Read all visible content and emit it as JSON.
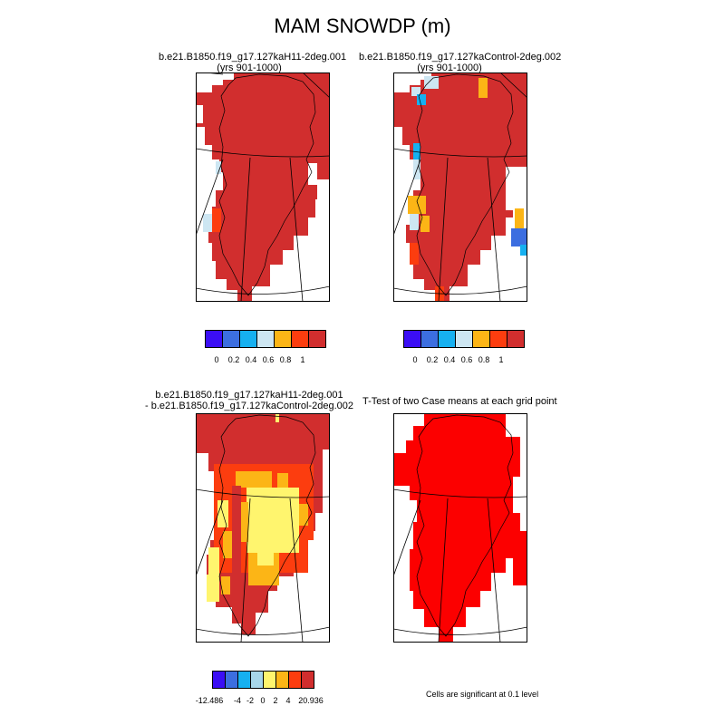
{
  "title": "MAM SNOWDP (m)",
  "panels": {
    "p1": {
      "line1": "b.e21.B1850.f19_g17.127kaH11-2deg.001",
      "line2": "(yrs 901-1000)"
    },
    "p2": {
      "line1": "b.e21.B1850.f19_g17.127kaControl-2deg.002",
      "line2": "(yrs 901-1000)"
    },
    "p3": {
      "line1": "b.e21.B1850.f19_g17.127kaH11-2deg.001",
      "line2": "- b.e21.B1850.f19_g17.127kaControl-2deg.002"
    },
    "p4": {
      "line1": "T-Test of two Case means at each grid point",
      "line2": ""
    }
  },
  "colorbar_top": {
    "colors": [
      "#3b0ef5",
      "#3c6ee0",
      "#16b0f0",
      "#cde6f2",
      "#fcb516",
      "#fc3d0f",
      "#d12e2e"
    ],
    "labels": [
      "0",
      "0.2",
      "0.4",
      "0.6",
      "0.8",
      "1"
    ]
  },
  "colorbar_diff": {
    "colors": [
      "#3b0ef5",
      "#3c6ee0",
      "#16b0f0",
      "#a7d6ea",
      "#fff56e",
      "#fcb516",
      "#fc3d0f",
      "#d12e2e"
    ],
    "labels": [
      "-12.486",
      "-4",
      "-2",
      "0",
      "2",
      "4",
      "20.936"
    ]
  },
  "note": "Cells are significant at 0.1 level",
  "fills": {
    "dark_red": "#d12e2e",
    "red": "#fc0000",
    "orange_red": "#fc3d0f",
    "orange": "#fcb516",
    "yellow": "#fff56e",
    "light_blue": "#cde6f2",
    "blue": "#16b0f0",
    "mid_blue": "#3c6ee0"
  }
}
